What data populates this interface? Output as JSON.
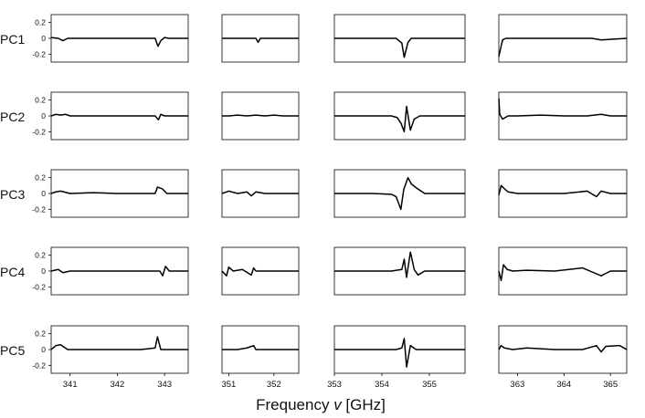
{
  "chart_data": {
    "type": "line",
    "xlabel_parts": {
      "before": "Frequency ",
      "var": "v",
      "after": " [GHz]"
    },
    "rows": [
      "PC1",
      "PC2",
      "PC3",
      "PC4",
      "PC5"
    ],
    "ylim": [
      -0.3,
      0.3
    ],
    "yticks": [
      "0.2",
      "0",
      "-0.2"
    ],
    "ytick_values": [
      0.2,
      0,
      -0.2
    ],
    "columns": [
      {
        "xlim": [
          340.6,
          343.5
        ],
        "xticks": [
          341,
          342,
          343
        ]
      },
      {
        "xlim": [
          350.85,
          352.55
        ],
        "xticks": [
          351,
          352
        ]
      },
      {
        "xlim": [
          353.0,
          355.75
        ],
        "xticks": [
          353,
          354,
          355
        ]
      },
      {
        "xlim": [
          362.6,
          365.35
        ],
        "xticks": [
          363,
          364,
          365
        ]
      }
    ],
    "series": [
      [
        {
          "x": [
            340.6,
            340.75,
            340.85,
            340.95,
            341.2,
            341.5,
            342.0,
            342.5,
            342.8,
            342.86,
            342.92,
            343.0,
            343.1,
            343.5
          ],
          "y": [
            0.01,
            0.0,
            -0.03,
            0.0,
            0.0,
            0.0,
            0.0,
            0.0,
            0.0,
            -0.1,
            -0.03,
            0.01,
            0.0,
            0.0
          ]
        },
        {
          "x": [
            350.85,
            351.2,
            351.6,
            351.65,
            351.7,
            352.1,
            352.55
          ],
          "y": [
            0.0,
            0.0,
            0.0,
            -0.05,
            0.0,
            0.0,
            0.0
          ]
        },
        {
          "x": [
            353.0,
            353.8,
            354.3,
            354.42,
            354.47,
            354.55,
            354.62,
            354.8,
            355.2,
            355.75
          ],
          "y": [
            0.0,
            0.0,
            0.0,
            -0.06,
            -0.24,
            -0.05,
            0.0,
            0.0,
            0.0,
            0.0
          ]
        },
        {
          "x": [
            362.6,
            362.63,
            362.68,
            362.75,
            362.9,
            363.5,
            364.0,
            364.6,
            364.8,
            365.35
          ],
          "y": [
            -0.23,
            -0.15,
            -0.02,
            0.0,
            0.0,
            0.0,
            0.0,
            0.0,
            -0.02,
            0.0
          ]
        }
      ],
      [
        {
          "x": [
            340.6,
            340.7,
            340.8,
            340.9,
            341.0,
            341.5,
            342.0,
            342.5,
            342.8,
            342.87,
            342.92,
            343.0,
            343.5
          ],
          "y": [
            0.0,
            0.02,
            0.01,
            0.02,
            0.0,
            0.0,
            0.0,
            0.0,
            0.0,
            -0.05,
            0.02,
            0.0,
            0.0
          ]
        },
        {
          "x": [
            350.85,
            351.0,
            351.2,
            351.4,
            351.6,
            351.8,
            352.0,
            352.2,
            352.55
          ],
          "y": [
            0.0,
            0.0,
            0.01,
            0.0,
            0.01,
            0.0,
            0.01,
            0.0,
            0.0
          ]
        },
        {
          "x": [
            353.0,
            353.8,
            354.2,
            354.32,
            354.4,
            354.47,
            354.52,
            354.6,
            354.68,
            354.8,
            355.2,
            355.75
          ],
          "y": [
            0.0,
            0.0,
            0.0,
            -0.02,
            -0.09,
            -0.2,
            0.12,
            -0.18,
            -0.04,
            0.0,
            0.0,
            0.0
          ]
        },
        {
          "x": [
            362.6,
            362.62,
            362.68,
            362.8,
            363.0,
            363.5,
            364.0,
            364.5,
            364.8,
            365.0,
            365.35
          ],
          "y": [
            0.22,
            0.02,
            -0.04,
            0.0,
            0.0,
            0.01,
            0.0,
            0.0,
            0.02,
            0.0,
            0.0
          ]
        }
      ],
      [
        {
          "x": [
            340.6,
            340.7,
            340.8,
            341.0,
            341.5,
            342.0,
            342.5,
            342.8,
            342.85,
            342.95,
            343.05,
            343.5
          ],
          "y": [
            0.0,
            0.02,
            0.03,
            0.0,
            0.01,
            0.0,
            0.0,
            0.0,
            0.08,
            0.06,
            0.0,
            0.0
          ]
        },
        {
          "x": [
            350.85,
            351.0,
            351.2,
            351.4,
            351.5,
            351.6,
            351.8,
            352.0,
            352.55
          ],
          "y": [
            0.0,
            0.03,
            0.0,
            0.02,
            -0.03,
            0.02,
            0.0,
            0.0,
            0.0
          ]
        },
        {
          "x": [
            353.0,
            353.8,
            354.2,
            354.3,
            354.4,
            354.46,
            354.55,
            354.62,
            354.75,
            354.9,
            355.75
          ],
          "y": [
            0.0,
            0.0,
            -0.01,
            -0.04,
            -0.2,
            0.05,
            0.2,
            0.12,
            0.06,
            0.0,
            0.0
          ]
        },
        {
          "x": [
            362.6,
            362.65,
            362.72,
            362.8,
            363.0,
            363.5,
            364.0,
            364.5,
            364.7,
            364.8,
            365.0,
            365.35
          ],
          "y": [
            -0.02,
            0.1,
            0.06,
            0.02,
            0.0,
            0.0,
            0.0,
            0.03,
            -0.04,
            0.03,
            0.0,
            0.0
          ]
        }
      ],
      [
        {
          "x": [
            340.6,
            340.75,
            340.85,
            341.0,
            341.5,
            342.0,
            342.5,
            342.9,
            342.96,
            343.02,
            343.1,
            343.5
          ],
          "y": [
            0.0,
            0.02,
            -0.02,
            0.0,
            0.0,
            0.0,
            0.0,
            0.0,
            -0.06,
            0.06,
            0.0,
            0.0
          ]
        },
        {
          "x": [
            350.85,
            350.95,
            351.0,
            351.1,
            351.3,
            351.5,
            351.55,
            351.6,
            351.8,
            352.55
          ],
          "y": [
            0.0,
            -0.06,
            0.05,
            0.0,
            0.02,
            -0.05,
            0.04,
            0.0,
            0.0,
            0.0
          ]
        },
        {
          "x": [
            353.0,
            353.8,
            354.2,
            354.42,
            354.47,
            354.52,
            354.6,
            354.68,
            354.76,
            354.9,
            355.75
          ],
          "y": [
            0.0,
            0.0,
            0.0,
            0.02,
            0.15,
            -0.08,
            0.24,
            0.02,
            -0.05,
            0.0,
            0.0
          ]
        },
        {
          "x": [
            362.6,
            362.65,
            362.7,
            362.78,
            362.9,
            363.2,
            363.8,
            364.4,
            364.8,
            365.0,
            365.35
          ],
          "y": [
            0.0,
            -0.12,
            0.08,
            0.02,
            0.0,
            0.01,
            0.0,
            0.04,
            -0.06,
            0.0,
            0.0
          ]
        }
      ],
      [
        {
          "x": [
            340.6,
            340.7,
            340.8,
            340.95,
            341.5,
            342.0,
            342.5,
            342.8,
            342.85,
            342.92,
            343.0,
            343.5
          ],
          "y": [
            0.0,
            0.05,
            0.06,
            0.0,
            0.0,
            0.0,
            0.0,
            0.02,
            0.16,
            0.0,
            0.0,
            0.0
          ]
        },
        {
          "x": [
            350.85,
            351.0,
            351.2,
            351.4,
            351.55,
            351.6,
            351.8,
            352.0,
            352.55
          ],
          "y": [
            0.0,
            0.0,
            0.0,
            0.02,
            0.05,
            0.0,
            0.0,
            0.0,
            0.0
          ]
        },
        {
          "x": [
            353.0,
            353.8,
            354.3,
            354.42,
            354.47,
            354.52,
            354.6,
            354.72,
            354.9,
            355.75
          ],
          "y": [
            0.0,
            0.0,
            0.0,
            0.02,
            0.14,
            -0.22,
            0.05,
            0.0,
            0.0,
            0.0
          ]
        },
        {
          "x": [
            362.6,
            362.65,
            362.72,
            362.9,
            363.2,
            363.8,
            364.4,
            364.7,
            364.8,
            364.9,
            365.2,
            365.35
          ],
          "y": [
            0.0,
            0.05,
            0.02,
            0.0,
            0.02,
            0.0,
            0.0,
            0.05,
            -0.03,
            0.04,
            0.05,
            0.0
          ]
        }
      ]
    ]
  }
}
